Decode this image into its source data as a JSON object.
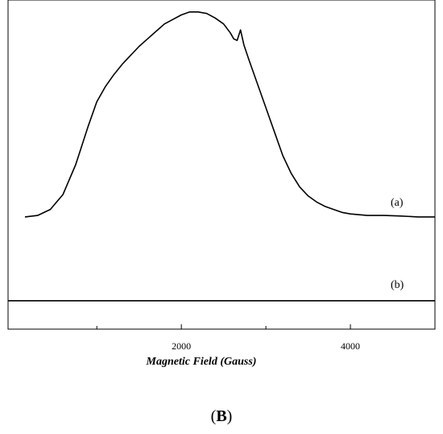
{
  "chart_data": {
    "type": "line",
    "title": "",
    "xlabel": "Magnetic Field (Gauss)",
    "ylabel": "",
    "xlim": [
      -50,
      5000
    ],
    "ylim": [
      0,
      1.1
    ],
    "x_ticks": [
      2000,
      4000
    ],
    "x_minor_ticks": [
      1000,
      3000
    ],
    "grid": false,
    "series": [
      {
        "name": "(a)",
        "x": [
          150,
          300,
          450,
          600,
          750,
          900,
          1000,
          1100,
          1200,
          1300,
          1400,
          1500,
          1600,
          1700,
          1800,
          1900,
          2000,
          2100,
          2200,
          2300,
          2400,
          2500,
          2580,
          2620,
          2660,
          2700,
          2740,
          2800,
          2900,
          3000,
          3100,
          3200,
          3300,
          3400,
          3500,
          3600,
          3700,
          3800,
          3900,
          4000,
          4200,
          4400,
          4600,
          4800,
          5000
        ],
        "values": [
          0.375,
          0.38,
          0.4,
          0.45,
          0.55,
          0.68,
          0.76,
          0.81,
          0.85,
          0.885,
          0.915,
          0.945,
          0.97,
          0.995,
          1.02,
          1.035,
          1.05,
          1.06,
          1.06,
          1.055,
          1.04,
          1.02,
          0.99,
          0.97,
          0.965,
          1.0,
          0.95,
          0.9,
          0.82,
          0.74,
          0.66,
          0.58,
          0.52,
          0.475,
          0.445,
          0.425,
          0.41,
          0.4,
          0.39,
          0.385,
          0.38,
          0.38,
          0.378,
          0.375,
          0.375
        ]
      },
      {
        "name": "(b)",
        "x": [
          -50,
          5000
        ],
        "values": [
          0.095,
          0.095
        ]
      }
    ],
    "annotations": [
      "(a)",
      "(b)"
    ]
  },
  "panel_label": "B",
  "panel_label_open": "(",
  "panel_label_close": ")"
}
